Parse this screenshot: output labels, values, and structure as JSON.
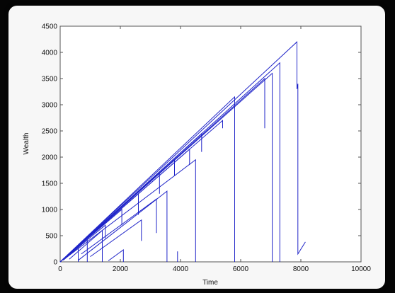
{
  "chart_data": {
    "type": "line",
    "xlabel": "Time",
    "ylabel": "Wealth",
    "xlim": [
      0,
      10000
    ],
    "ylim": [
      0,
      4500
    ],
    "x_ticks": [
      0,
      2000,
      4000,
      6000,
      8000,
      10000
    ],
    "y_ticks": [
      0,
      500,
      1000,
      1500,
      2000,
      2500,
      3000,
      3500,
      4000,
      4500
    ],
    "grid": false,
    "line_color": "#1f24c8",
    "series": [
      {
        "x": [
          0,
          7870,
          7870,
          7900,
          7900,
          8150
        ],
        "y": [
          0,
          4200,
          3300,
          3400,
          150,
          380
        ]
      },
      {
        "x": [
          0,
          7300,
          7300
        ],
        "y": [
          0,
          3800,
          0
        ]
      },
      {
        "x": [
          0,
          7050,
          7050
        ],
        "y": [
          0,
          3600,
          0
        ]
      },
      {
        "x": [
          0,
          6800,
          6800
        ],
        "y": [
          0,
          3500,
          2550
        ]
      },
      {
        "x": [
          0,
          5800,
          5800
        ],
        "y": [
          0,
          3150,
          0
        ]
      },
      {
        "x": [
          0,
          5400,
          5400
        ],
        "y": [
          0,
          2700,
          2550
        ]
      },
      {
        "x": [
          0,
          4700,
          4700
        ],
        "y": [
          0,
          2450,
          2100
        ]
      },
      {
        "x": [
          0,
          4300,
          4300
        ],
        "y": [
          0,
          2150,
          1850
        ]
      },
      {
        "x": [
          0,
          3800,
          3800
        ],
        "y": [
          0,
          1950,
          1650
        ]
      },
      {
        "x": [
          0,
          3300,
          3300
        ],
        "y": [
          0,
          1700,
          1300
        ]
      },
      {
        "x": [
          0,
          2600,
          2600
        ],
        "y": [
          0,
          1300,
          900
        ]
      },
      {
        "x": [
          0,
          2050,
          2050
        ],
        "y": [
          0,
          1000,
          700
        ]
      },
      {
        "x": [
          0,
          1500,
          1500
        ],
        "y": [
          0,
          700,
          450
        ]
      },
      {
        "x": [
          200,
          4500,
          4500
        ],
        "y": [
          80,
          1950,
          0
        ]
      },
      {
        "x": [
          600,
          3550,
          3550
        ],
        "y": [
          30,
          1350,
          0
        ]
      },
      {
        "x": [
          700,
          3200,
          3200
        ],
        "y": [
          150,
          1200,
          550
        ]
      },
      {
        "x": [
          1000,
          2700,
          2700
        ],
        "y": [
          100,
          800,
          400
        ]
      },
      {
        "x": [
          1600,
          2100,
          2100
        ],
        "y": [
          20,
          230,
          0
        ]
      },
      {
        "x": [
          300,
          1400,
          1400
        ],
        "y": [
          50,
          600,
          0
        ]
      },
      {
        "x": [
          100,
          900,
          900
        ],
        "y": [
          30,
          420,
          0
        ]
      },
      {
        "x": [
          0,
          600,
          600
        ],
        "y": [
          0,
          320,
          0
        ]
      },
      {
        "x": [
          3900,
          3900
        ],
        "y": [
          0,
          200
        ]
      }
    ]
  }
}
